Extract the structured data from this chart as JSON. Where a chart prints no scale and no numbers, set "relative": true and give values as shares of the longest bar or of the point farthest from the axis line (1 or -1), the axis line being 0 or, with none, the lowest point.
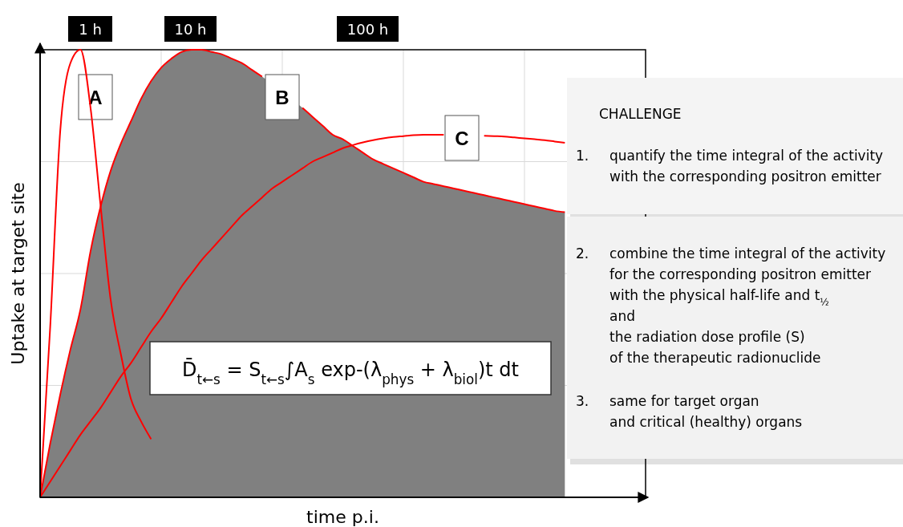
{
  "chart_data": {
    "type": "line",
    "relative": true,
    "grid": true,
    "xlabel": "time p.i.",
    "ylabel": "Uptake at target site",
    "categories": [
      null,
      null,
      null,
      null,
      null,
      null,
      null,
      null,
      null,
      null,
      null,
      null,
      null,
      null,
      null,
      null,
      null,
      null,
      null,
      null,
      null,
      null,
      null,
      null,
      null,
      null,
      null,
      null,
      null,
      null,
      null,
      null,
      null,
      null,
      null,
      null,
      null,
      null,
      null,
      null,
      null,
      null,
      null,
      null,
      null,
      null,
      null,
      null,
      null,
      null,
      null,
      null,
      null,
      null,
      null,
      null,
      null,
      null,
      null,
      null,
      null
    ],
    "series": [
      {
        "name": "A",
        "color": "#ff0000",
        "values": [
          0,
          0.38,
          0.82,
          0.97,
          1,
          0.87,
          0.65,
          0.44,
          0.32,
          0.22,
          0.17,
          0.13,
          null,
          null,
          null,
          null,
          null,
          null,
          null,
          null,
          null,
          null,
          null,
          null,
          null,
          null,
          null,
          null,
          null,
          null,
          null,
          null,
          null,
          null,
          null,
          null,
          null,
          null,
          null,
          null,
          null,
          null,
          null,
          null,
          null,
          null,
          null,
          null,
          null,
          null,
          null,
          null,
          null,
          null,
          null,
          null,
          null,
          null,
          null,
          null,
          null
        ]
      },
      {
        "name": "B",
        "type": "area",
        "color": "#808080",
        "values": [
          0,
          0.12,
          0.23,
          0.33,
          0.42,
          0.55,
          0.65,
          0.73,
          0.79,
          0.84,
          0.89,
          0.93,
          0.96,
          0.98,
          0.995,
          1,
          1,
          0.995,
          0.99,
          0.98,
          0.97,
          0.955,
          0.94,
          null,
          null,
          null,
          0.87,
          0.85,
          0.83,
          0.81,
          0.8,
          0.785,
          0.77,
          0.755,
          0.745,
          0.735,
          0.725,
          0.715,
          0.705,
          0.7,
          0.695,
          0.69,
          0.685,
          0.68,
          0.675,
          0.67,
          0.665,
          0.66,
          0.655,
          0.65,
          0.645,
          0.64,
          0.637,
          null,
          null,
          null,
          null,
          null,
          null,
          null,
          null
        ]
      },
      {
        "name": "C",
        "color": "#ff0000",
        "values": [
          0,
          0.035,
          0.07,
          0.105,
          0.14,
          0.17,
          0.2,
          0.235,
          0.27,
          0.3,
          0.335,
          0.37,
          0.4,
          0.435,
          0.47,
          0.5,
          0.53,
          0.555,
          0.58,
          0.605,
          0.63,
          0.65,
          0.67,
          0.69,
          0.705,
          0.72,
          0.735,
          0.75,
          0.76,
          0.77,
          0.78,
          0.787,
          0.793,
          0.798,
          0.802,
          0.805,
          0.807,
          0.809,
          0.81,
          0.81,
          0.81,
          null,
          null,
          null,
          0.808,
          0.807,
          0.806,
          0.804,
          0.802,
          0.8,
          0.798,
          0.795,
          0.792,
          null,
          null,
          null,
          null,
          null,
          null,
          null,
          null
        ]
      }
    ],
    "annotations": [
      "1 h",
      "10 h",
      "100 h",
      "D̄$_{t←s}$ = S$_{t←s}$∫A$_{s}$ exp-(λ$_{phys}$ + λ$_{biol}$)t dt",
      "CHALLENGE",
      "1.\tquantify the time integral of the activity\nwith the corresponding positron emitter",
      "2.\tcombine the time integral of the activity\nfor the corresponding positron emitter\nwith the physical half-life and t$_{½}$\nand\nthe radiation dose profile (S)\nof the therapeutic radionuclide",
      "3.\tsame for target organ\nand critical (healthy) organs"
    ]
  }
}
